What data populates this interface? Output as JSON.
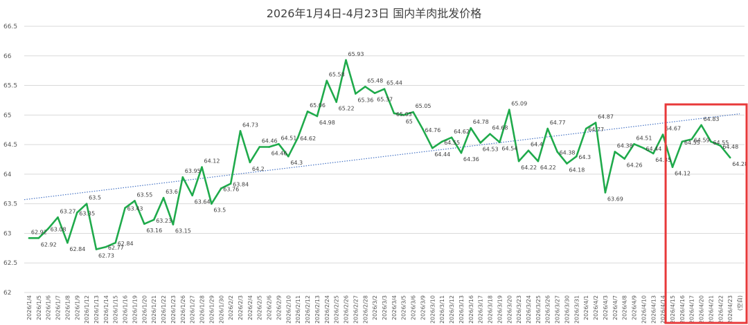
{
  "chart_data": {
    "type": "line",
    "title": "2026年1月4日-4月23日 国内羊肉批发价格",
    "xlabel": "",
    "ylabel": "",
    "ylim": [
      62,
      66.5
    ],
    "yticks": [
      "62",
      "62.5",
      "63",
      "63.5",
      "64",
      "64.5",
      "65",
      "65.5",
      "66",
      "66.5"
    ],
    "grid": true,
    "series_color": "#1faa4b",
    "trendline": {
      "name": "linear trend",
      "start": 63.57,
      "end": 65.02,
      "color": "#4472c4"
    },
    "highlight": {
      "from_category": "2026/4/15",
      "to_category": "(空白)",
      "color": "#e8393a"
    },
    "categories": [
      "2026/1/4",
      "2026/1/5",
      "2026/1/6",
      "2026/1/7",
      "2026/1/8",
      "2026/1/9",
      "2026/1/12",
      "2026/1/13",
      "2026/1/14",
      "2026/1/15",
      "2026/1/16",
      "2026/1/19",
      "2026/1/20",
      "2026/1/21",
      "2026/1/22",
      "2026/1/23",
      "2026/1/26",
      "2026/1/27",
      "2026/1/28",
      "2026/1/29",
      "2026/1/30",
      "2026/2/2",
      "2026/2/3",
      "2026/2/4",
      "2026/2/5",
      "2026/2/6",
      "2026/2/9",
      "2026/2/10",
      "2026/2/11",
      "2026/2/12",
      "2026/2/13",
      "2026/2/24",
      "2026/2/25",
      "2026/2/26",
      "2026/2/27",
      "2026/2/28",
      "2026/3/2",
      "2026/3/3",
      "2026/3/4",
      "2026/3/5",
      "2026/3/6",
      "2026/3/9",
      "2026/3/10",
      "2026/3/11",
      "2026/3/12",
      "2026/3/13",
      "2026/3/16",
      "2026/3/17",
      "2026/3/18",
      "2026/3/19",
      "2026/3/20",
      "2026/3/23",
      "2026/3/24",
      "2026/3/25",
      "2026/3/26",
      "2026/3/27",
      "2026/3/30",
      "2026/3/31",
      "2026/4/1",
      "2026/4/2",
      "2026/4/3",
      "2026/4/7",
      "2026/4/8",
      "2026/4/9",
      "2026/4/10",
      "2026/4/13",
      "2026/4/14",
      "2026/4/15",
      "2026/4/16",
      "2026/4/17",
      "2026/4/20",
      "2026/4/21",
      "2026/4/22",
      "2026/4/23",
      "(空白)"
    ],
    "values": [
      62.92,
      62.92,
      63.08,
      63.27,
      62.84,
      63.35,
      63.5,
      62.73,
      62.77,
      62.84,
      63.43,
      63.55,
      63.16,
      63.23,
      63.6,
      63.15,
      63.95,
      63.64,
      64.12,
      63.5,
      63.76,
      63.84,
      64.73,
      64.2,
      64.46,
      64.46,
      64.51,
      64.3,
      64.62,
      65.06,
      64.98,
      65.58,
      65.22,
      65.93,
      65.36,
      65.48,
      65.37,
      65.44,
      65.03,
      65.0,
      65.05,
      64.76,
      64.44,
      64.55,
      64.62,
      64.36,
      64.78,
      64.53,
      64.68,
      64.54,
      65.09,
      64.22,
      64.4,
      64.22,
      64.77,
      64.38,
      64.18,
      64.3,
      64.77,
      64.87,
      63.69,
      64.38,
      64.26,
      64.51,
      64.44,
      64.35,
      64.67,
      64.12,
      64.55,
      64.59,
      64.83,
      64.55,
      64.48,
      64.28,
      null
    ],
    "data_labels": [
      "62.92",
      "62.92",
      "63.08",
      "63.27",
      "62.84",
      "63.35",
      "63.5",
      "62.73",
      "62.77",
      "62.84",
      "63.43",
      "63.55",
      "63.16",
      "63.23",
      "63.6",
      "63.15",
      "63.95",
      "63.64",
      "64.12",
      "63.5",
      "63.76",
      "63.84",
      "64.73",
      "64.2",
      "64.46",
      "64.46",
      "64.51",
      "64.3",
      "64.62",
      "65.06",
      "64.98",
      "65.58",
      "65.22",
      "65.93",
      "65.36",
      "65.48",
      "65.37",
      "65.44",
      "65.03",
      "65",
      "65.05",
      "64.76",
      "64.44",
      "64.55",
      "64.62",
      "64.36",
      "64.78",
      "64.53",
      "64.68",
      "64.54",
      "65.09",
      "64.22",
      "64.4",
      "64.22",
      "64.77",
      "64.38",
      "64.18",
      "64.3",
      "64.77",
      "64.87",
      "63.69",
      "64.38",
      "64.26",
      "64.51",
      "64.44",
      "64.35",
      "64.67",
      "64.12",
      "64.55",
      "64.59",
      "64.83",
      "64.55",
      "64.48",
      "64.28",
      ""
    ]
  }
}
